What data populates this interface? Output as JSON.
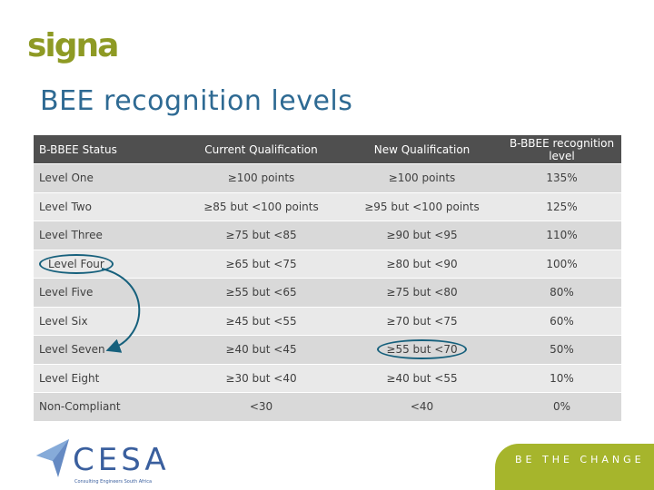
{
  "brand": {
    "logo_text": "signa",
    "logo_color": "#8e9a24"
  },
  "slide_title": "BEE recognition levels",
  "table": {
    "headers": [
      "B-BBEE Status",
      "Current Qualification",
      "New Qualification",
      "B-BBEE recognition level"
    ],
    "rows": [
      [
        "Level One",
        "≥100 points",
        "≥100 points",
        "135%"
      ],
      [
        "Level Two",
        "≥85 but <100 points",
        "≥95 but <100 points",
        "125%"
      ],
      [
        "Level Three",
        "≥75 but <85",
        "≥90 but <95",
        "110%"
      ],
      [
        "Level Four",
        "≥65 but <75",
        "≥80 but <90",
        "100%"
      ],
      [
        "Level Five",
        "≥55 but <65",
        "≥75 but <80",
        "80%"
      ],
      [
        "Level Six",
        "≥45 but <55",
        "≥70 but <75",
        "60%"
      ],
      [
        "Level Seven",
        "≥40 but <45",
        "≥55 but <70",
        "50%"
      ],
      [
        "Level Eight",
        "≥30 but <40",
        "≥40 but <55",
        "10%"
      ],
      [
        "Non-Compliant",
        "<30",
        "<40",
        "0%"
      ]
    ],
    "header_color": "#4f4f4f",
    "annotation_color": "#16607c"
  },
  "footer": {
    "cesa_logo": "CESA",
    "cesa_tagline": "Consulting Engineers South Africa",
    "tagline": "BE THE CHANGE",
    "band_color": "#a6b52c"
  }
}
